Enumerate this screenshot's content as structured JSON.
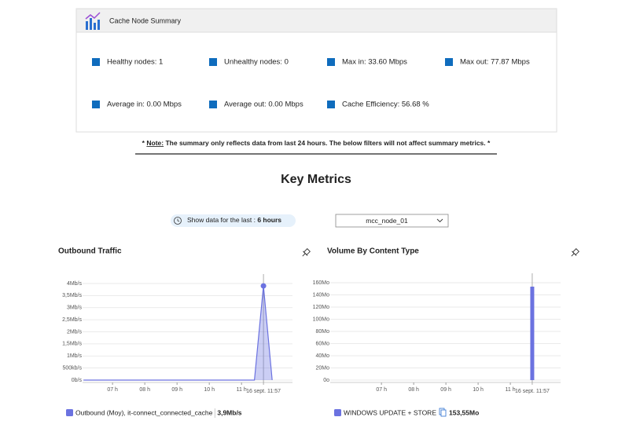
{
  "summary": {
    "title": "Cache Node Summary",
    "items": [
      "Healthy nodes: 1",
      "Unhealthy nodes: 0",
      "Max in: 33.60 Mbps",
      "Max out: 77.87 Mbps",
      "Average in: 0.00 Mbps",
      "Average out: 0.00 Mbps",
      "Cache Efficiency: 56.68 %"
    ]
  },
  "note": {
    "lead": "*",
    "label": "Note:",
    "text": "The summary only reflects data from last 24 hours. The below filters will not affect summary metrics. *"
  },
  "heading": "Key Metrics",
  "filters": {
    "time_label": "Show data for the last :",
    "time_value": "6 hours",
    "node": "mcc_node_01"
  },
  "chart_data": [
    {
      "type": "line",
      "title": "Outbound Traffic",
      "x": [
        6.1,
        11.4,
        11.68,
        11.95
      ],
      "series": [
        {
          "name": "Outbound (Moy), it-connect_connected_cache",
          "color": "#6b72e0",
          "values": [
            0,
            0,
            3.9,
            0
          ],
          "legend_value": {
            "value": 3.9,
            "label": "3,9Mb/s"
          }
        }
      ],
      "xlim": [
        6.07,
        12.58
      ],
      "xticks": [
        {
          "value": 7,
          "label": "07 h"
        },
        {
          "value": 8,
          "label": "08 h"
        },
        {
          "value": 9,
          "label": "09 h"
        },
        {
          "value": 10,
          "label": "10 h"
        },
        {
          "value": 11,
          "label": "11 h"
        }
      ],
      "crosshair": {
        "x": 11.68,
        "label": "16 sept. 11:57"
      },
      "ylim": [
        0,
        4
      ],
      "yticks": [
        {
          "value": 0,
          "label": "0b/s"
        },
        {
          "value": 0.5,
          "label": "500kb/s"
        },
        {
          "value": 1,
          "label": "1Mb/s"
        },
        {
          "value": 1.5,
          "label": "1,5Mb/s"
        },
        {
          "value": 2,
          "label": "2Mb/s"
        },
        {
          "value": 2.5,
          "label": "2,5Mb/s"
        },
        {
          "value": 3,
          "label": "3Mb/s"
        },
        {
          "value": 3.5,
          "label": "3,5Mb/s"
        },
        {
          "value": 4,
          "label": "4Mb/s"
        }
      ],
      "grid": true
    },
    {
      "type": "bar",
      "title": "Volume By Content Type",
      "x": [
        11.68
      ],
      "series": [
        {
          "name": "WINDOWS UPDATE + STORE",
          "color": "#6b72e0",
          "values": [
            153.55
          ],
          "legend_value": {
            "value": 153.55,
            "label": "153,55Mo"
          }
        }
      ],
      "xlim": [
        5.41,
        12.56
      ],
      "xticks": [
        {
          "value": 7,
          "label": "07 h"
        },
        {
          "value": 8,
          "label": "08 h"
        },
        {
          "value": 9,
          "label": "09 h"
        },
        {
          "value": 10,
          "label": "10 h"
        },
        {
          "value": 11,
          "label": "11 h"
        }
      ],
      "crosshair": {
        "x": 11.68,
        "label": "16 sept. 11:57"
      },
      "ylim": [
        0,
        160
      ],
      "yticks": [
        {
          "value": 0,
          "label": "0o"
        },
        {
          "value": 20,
          "label": "20Mo"
        },
        {
          "value": 40,
          "label": "40Mo"
        },
        {
          "value": 60,
          "label": "60Mo"
        },
        {
          "value": 80,
          "label": "80Mo"
        },
        {
          "value": 100,
          "label": "100Mo"
        },
        {
          "value": 120,
          "label": "120Mo"
        },
        {
          "value": 140,
          "label": "140Mo"
        },
        {
          "value": 160,
          "label": "160Mo"
        }
      ],
      "grid": true
    }
  ]
}
